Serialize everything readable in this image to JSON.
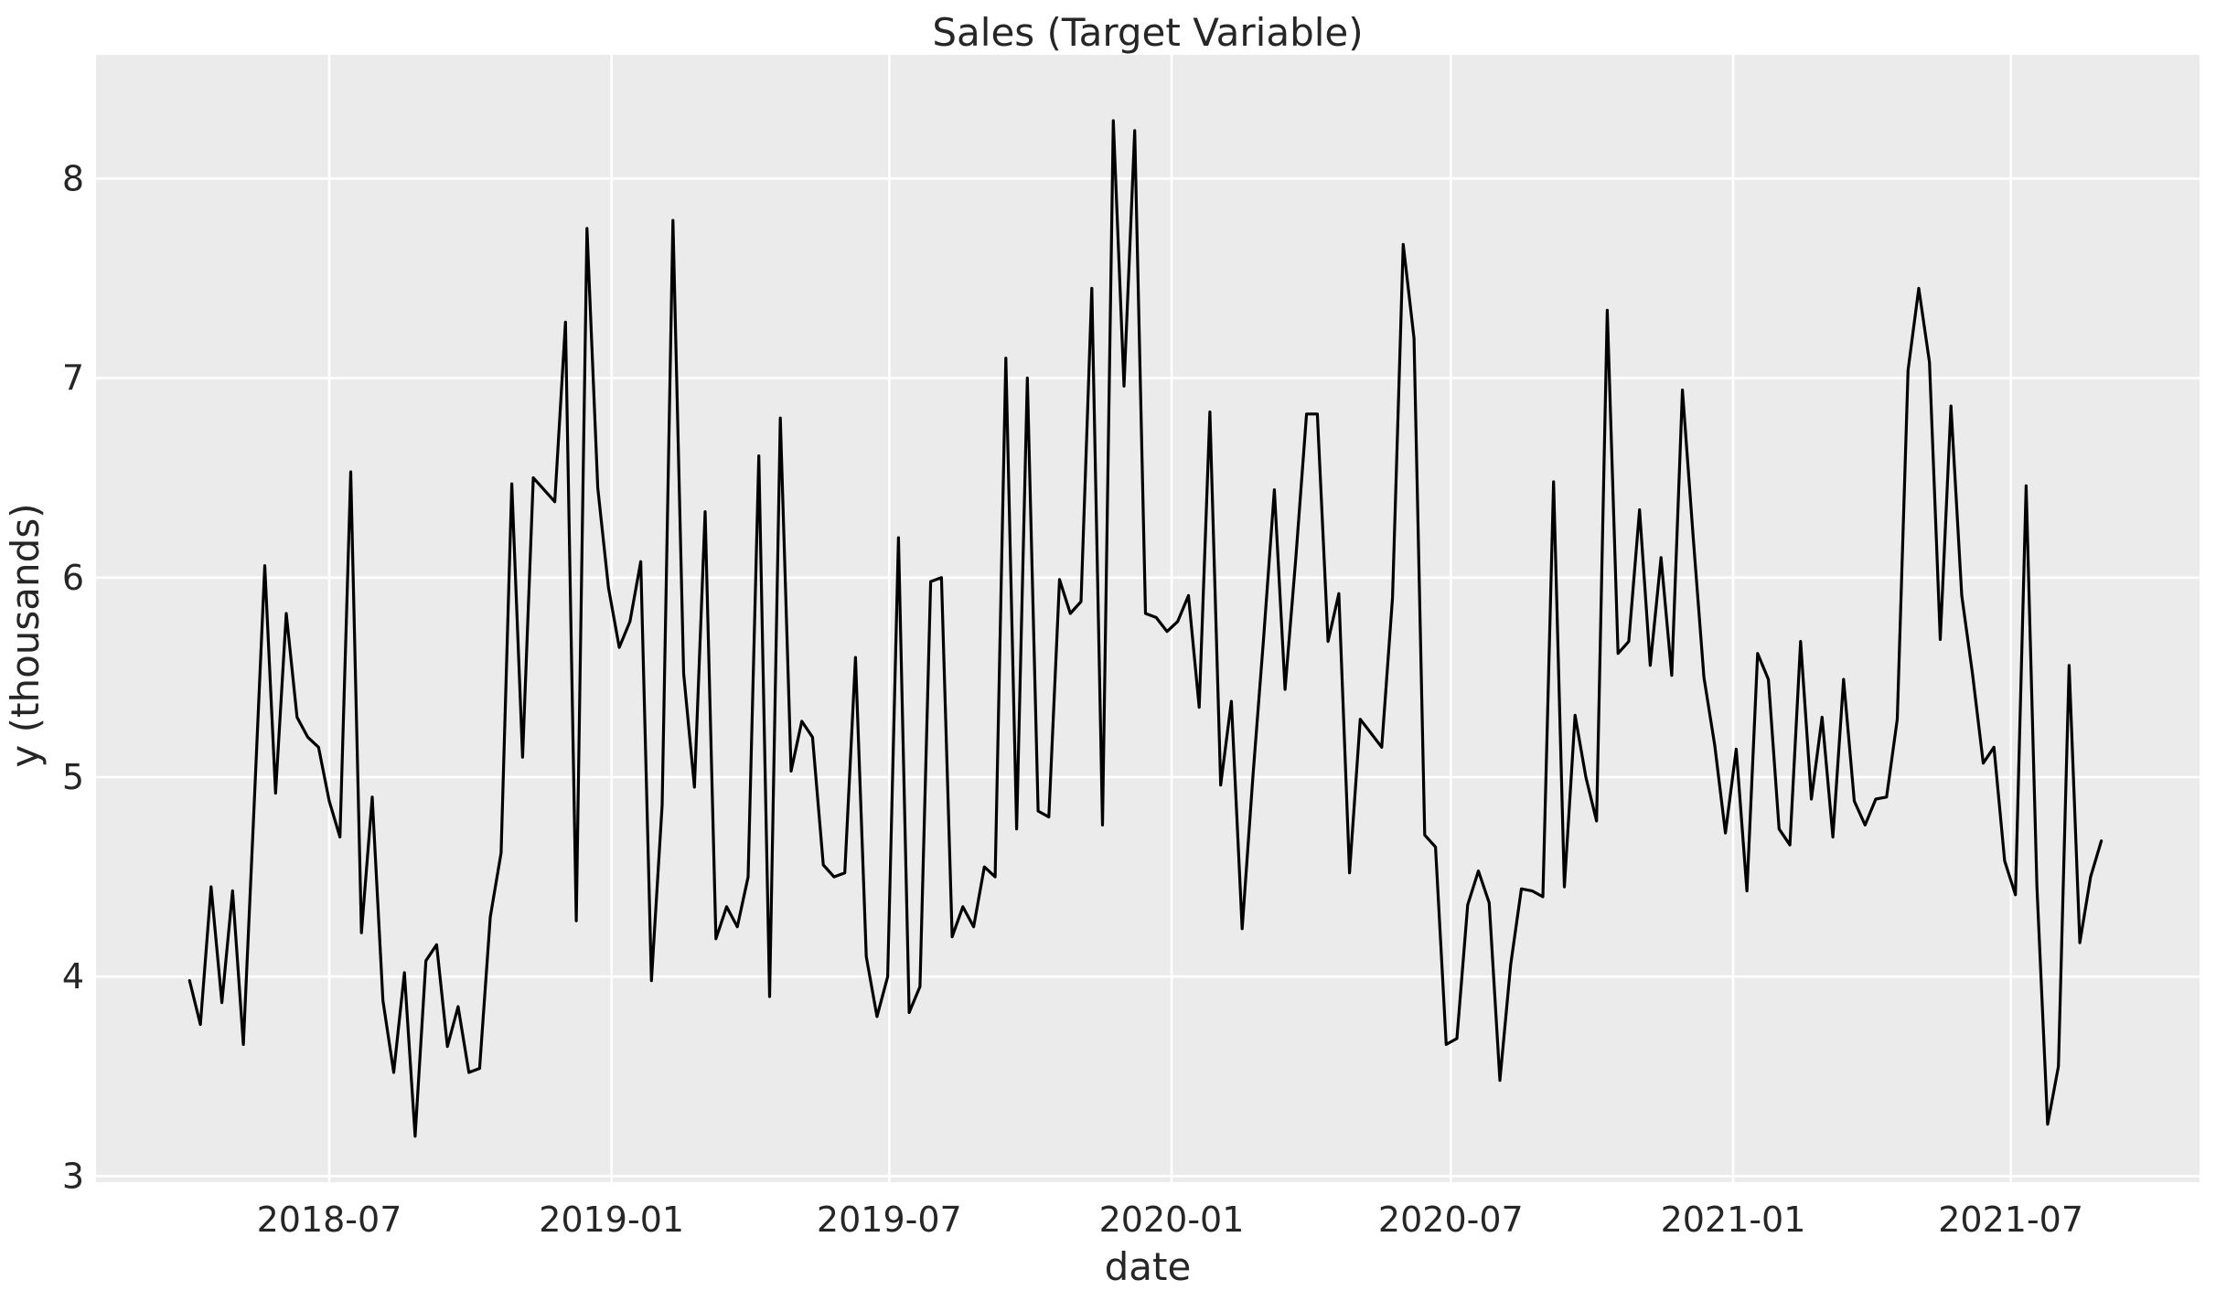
{
  "chart_data": {
    "type": "line",
    "title": "Sales (Target Variable)",
    "xlabel": "date",
    "ylabel": "y (thousands)",
    "legend_position": "none",
    "grid": true,
    "start_date": "2018-04-01",
    "freq_days": 7,
    "values": [
      3.98,
      3.76,
      4.45,
      3.87,
      4.43,
      3.66,
      4.85,
      6.06,
      4.92,
      5.82,
      5.3,
      5.2,
      5.15,
      4.88,
      4.7,
      6.53,
      4.22,
      4.9,
      3.88,
      3.52,
      4.02,
      3.2,
      4.08,
      4.16,
      3.65,
      3.85,
      3.52,
      3.54,
      4.3,
      4.62,
      6.47,
      5.1,
      6.5,
      6.44,
      6.38,
      7.28,
      4.28,
      7.75,
      6.45,
      5.95,
      5.65,
      5.78,
      6.08,
      3.98,
      4.86,
      7.79,
      5.52,
      4.95,
      6.33,
      4.19,
      4.35,
      4.25,
      4.5,
      6.61,
      3.9,
      6.8,
      5.03,
      5.28,
      5.2,
      4.56,
      4.5,
      4.52,
      5.6,
      4.1,
      3.8,
      4.0,
      6.2,
      3.82,
      3.95,
      5.98,
      6.0,
      4.2,
      4.35,
      4.25,
      4.55,
      4.5,
      7.1,
      4.74,
      7.0,
      4.83,
      4.8,
      5.99,
      5.82,
      5.88,
      7.45,
      4.76,
      8.29,
      6.96,
      8.24,
      5.82,
      5.8,
      5.73,
      5.78,
      5.91,
      5.35,
      6.83,
      4.96,
      5.38,
      4.24,
      5.0,
      5.7,
      6.44,
      5.44,
      6.1,
      6.82,
      6.82,
      5.68,
      5.92,
      4.52,
      5.29,
      5.22,
      5.15,
      5.9,
      7.67,
      7.2,
      4.71,
      4.65,
      3.66,
      3.69,
      4.36,
      4.53,
      4.37,
      3.48,
      4.06,
      4.44,
      4.43,
      4.4,
      6.48,
      4.45,
      5.31,
      5.0,
      4.78,
      7.34,
      5.62,
      5.68,
      6.34,
      5.56,
      6.1,
      5.51,
      6.94,
      6.2,
      5.5,
      5.16,
      4.72,
      5.14,
      4.43,
      5.62,
      5.49,
      4.74,
      4.66,
      5.68,
      4.89,
      5.3,
      4.7,
      5.49,
      4.88,
      4.76,
      4.89,
      4.9,
      5.29,
      7.04,
      7.45,
      7.08,
      5.69,
      6.86,
      5.91,
      5.52,
      5.07,
      5.15,
      4.58,
      4.41,
      6.46,
      4.45,
      3.26,
      3.55,
      5.56,
      4.17,
      4.5,
      4.68
    ],
    "y_ticks": [
      3,
      4,
      5,
      6,
      7,
      8
    ],
    "x_ticks": [
      "2018-07",
      "2019-01",
      "2019-07",
      "2020-01",
      "2020-07",
      "2021-01",
      "2021-07"
    ],
    "ylim": [
      2.97,
      8.62
    ],
    "xlim": [
      "2018-01-30",
      "2021-11-01"
    ],
    "colors": {
      "line": "#000000",
      "plot_background": "#ebebeb",
      "grid": "#ffffff",
      "text": "#262626"
    }
  }
}
